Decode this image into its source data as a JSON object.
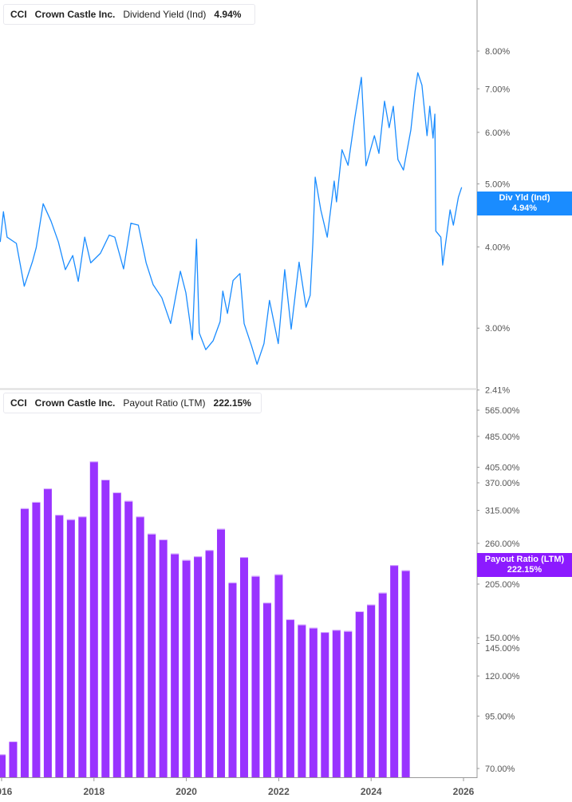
{
  "colors": {
    "yield": "#1a8cff",
    "payout": "#9933ff",
    "payout_tip": "#8c1aff"
  },
  "top_legend": {
    "ticker": "CCI",
    "company": "Crown Castle Inc.",
    "metric": "Dividend Yield (Ind)",
    "value": "4.94%"
  },
  "bottom_legend": {
    "ticker": "CCI",
    "company": "Crown Castle Inc.",
    "metric": "Payout Ratio (LTM)",
    "value": "222.15%"
  },
  "top_tooltip": {
    "label": "Div Yld (Ind)",
    "value": "4.94%"
  },
  "bottom_tooltip": {
    "label": "Payout Ratio (LTM)",
    "value": "222.15%"
  },
  "chart_data": [
    {
      "type": "line",
      "series_name": "Dividend Yield (Ind)",
      "scale": "log",
      "ylim": [
        2.41,
        9.2
      ],
      "xlim": [
        2015.97,
        2026.2
      ],
      "y_ticks": [
        {
          "v": 8,
          "label": "8.00%"
        },
        {
          "v": 7,
          "label": "7.00%"
        },
        {
          "v": 6,
          "label": "6.00%"
        },
        {
          "v": 5,
          "label": "5.00%"
        },
        {
          "v": 4,
          "label": "4.00%"
        },
        {
          "v": 3,
          "label": "3.00%"
        },
        {
          "v": 2.41,
          "label": "2.41%"
        }
      ],
      "x": [
        2015.97,
        2016.04,
        2016.12,
        2016.32,
        2016.49,
        2016.67,
        2016.75,
        2016.9,
        2017.07,
        2017.23,
        2017.38,
        2017.54,
        2017.66,
        2017.8,
        2017.93,
        2018.14,
        2018.33,
        2018.45,
        2018.64,
        2018.8,
        2018.96,
        2019.13,
        2019.28,
        2019.47,
        2019.66,
        2019.87,
        2019.99,
        2020.13,
        2020.22,
        2020.28,
        2020.42,
        2020.58,
        2020.73,
        2020.79,
        2020.89,
        2021.01,
        2021.16,
        2021.25,
        2021.41,
        2021.53,
        2021.68,
        2021.8,
        2021.99,
        2022.13,
        2022.27,
        2022.44,
        2022.59,
        2022.68,
        2022.74,
        2022.79,
        2022.91,
        2023.05,
        2023.2,
        2023.25,
        2023.37,
        2023.5,
        2023.65,
        2023.79,
        2023.89,
        2024.07,
        2024.17,
        2024.29,
        2024.39,
        2024.48,
        2024.58,
        2024.7,
        2024.86,
        2024.95,
        2025.01,
        2025.1,
        2025.21,
        2025.27,
        2025.34,
        2025.38,
        2025.4,
        2025.51,
        2025.55,
        2025.71,
        2025.78,
        2025.89,
        2025.96
      ],
      "y": [
        4.07,
        4.53,
        4.14,
        4.05,
        3.48,
        3.8,
        3.99,
        4.66,
        4.38,
        4.07,
        3.69,
        3.88,
        3.54,
        4.14,
        3.78,
        3.91,
        4.17,
        4.14,
        3.7,
        4.35,
        4.32,
        3.78,
        3.5,
        3.34,
        3.05,
        3.67,
        3.4,
        2.88,
        4.11,
        2.95,
        2.78,
        2.87,
        3.07,
        3.42,
        3.16,
        3.55,
        3.64,
        3.05,
        2.82,
        2.64,
        2.84,
        3.31,
        2.84,
        3.69,
        2.99,
        3.79,
        3.23,
        3.37,
        4.07,
        5.12,
        4.56,
        4.14,
        5.05,
        4.69,
        5.64,
        5.34,
        6.33,
        7.29,
        5.33,
        5.93,
        5.57,
        6.7,
        6.1,
        6.58,
        5.45,
        5.25,
        6.05,
        6.93,
        7.41,
        7.09,
        5.93,
        6.58,
        5.88,
        6.4,
        4.23,
        4.14,
        3.75,
        4.56,
        4.32,
        4.77,
        4.94
      ]
    },
    {
      "type": "bar",
      "series_name": "Payout Ratio (LTM)",
      "scale": "log",
      "ylim": [
        66,
        600
      ],
      "y_ticks": [
        {
          "v": 565,
          "label": "565.00%"
        },
        {
          "v": 485,
          "label": "485.00%"
        },
        {
          "v": 405,
          "label": "405.00%"
        },
        {
          "v": 370,
          "label": "370.00%"
        },
        {
          "v": 315,
          "label": "315.00%"
        },
        {
          "v": 260,
          "label": "260.00%"
        },
        {
          "v": 205,
          "label": "205.00%"
        },
        {
          "v": 150,
          "label": "150.00%"
        },
        {
          "v": 145,
          "label": "145.00%"
        },
        {
          "v": 120,
          "label": "120.00%"
        },
        {
          "v": 95,
          "label": "95.00%"
        },
        {
          "v": 70,
          "label": "70.00%"
        }
      ],
      "x_ticks": [
        {
          "v": 2016,
          "label": "2016"
        },
        {
          "v": 2018,
          "label": "2018"
        },
        {
          "v": 2020,
          "label": "2020"
        },
        {
          "v": 2022,
          "label": "2022"
        },
        {
          "v": 2024,
          "label": "2024"
        },
        {
          "v": 2026,
          "label": "2026"
        }
      ],
      "categories": [
        "2015-12",
        "2016-03",
        "2016-06",
        "2016-09",
        "2016-12",
        "2017-03",
        "2017-06",
        "2017-09",
        "2017-12",
        "2018-03",
        "2018-06",
        "2018-09",
        "2018-12",
        "2019-03",
        "2019-06",
        "2019-09",
        "2019-12",
        "2020-03",
        "2020-06",
        "2020-09",
        "2020-12",
        "2021-03",
        "2021-06",
        "2021-09",
        "2021-12",
        "2022-03",
        "2022-06",
        "2022-09",
        "2022-12",
        "2023-03",
        "2023-06",
        "2023-09",
        "2023-12",
        "2024-03",
        "2024-06",
        "2024-09"
      ],
      "values": [
        76,
        82,
        319,
        331,
        358,
        307,
        299,
        304,
        419,
        377,
        350,
        333,
        304,
        275,
        266,
        245,
        236,
        241,
        250,
        283,
        207,
        240,
        215,
        184,
        217,
        167,
        162,
        159,
        155,
        157,
        156,
        175,
        182,
        195,
        229,
        222.15
      ]
    }
  ]
}
